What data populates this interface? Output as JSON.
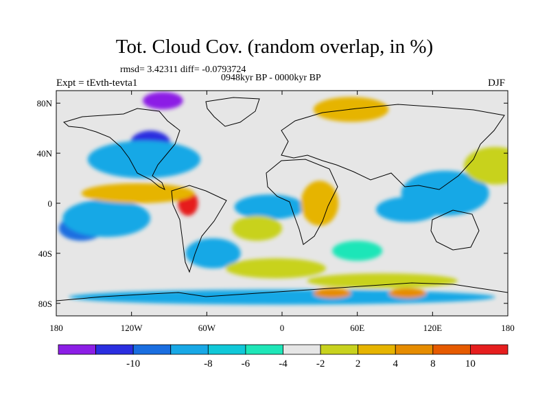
{
  "title": "Tot. Cloud Cov. (random overlap, in %)",
  "stats": "rmsd= 3.42311 diff= -0.0793724",
  "period": "0948kyr BP - 0000kyr BP",
  "experiment": "Expt = tEvth-tevta1",
  "season": "DJF",
  "map": {
    "projection": "cylindrical equidistant",
    "lon_range": [
      -180,
      180
    ],
    "lat_range": [
      -90,
      90
    ],
    "background_color": "#e6e6e6",
    "lat_ticks": [
      {
        "lat": 80,
        "label": "80N"
      },
      {
        "lat": 40,
        "label": "40N"
      },
      {
        "lat": 0,
        "label": "0"
      },
      {
        "lat": -40,
        "label": "40S"
      },
      {
        "lat": -80,
        "label": "80S"
      }
    ],
    "lon_ticks": [
      {
        "lon": -180,
        "label": "180"
      },
      {
        "lon": -120,
        "label": "120W"
      },
      {
        "lon": -60,
        "label": "60W"
      },
      {
        "lon": 0,
        "label": "0"
      },
      {
        "lon": 60,
        "label": "60E"
      },
      {
        "lon": 120,
        "label": "120E"
      },
      {
        "lon": 180,
        "label": "180"
      }
    ]
  },
  "colorbar": {
    "colors": [
      "#8c1ee6",
      "#2a2ee0",
      "#1a6ee0",
      "#18a8e6",
      "#10c8d8",
      "#1ee6b8",
      "#e6e6e6",
      "#c8d21e",
      "#e6b400",
      "#e68c00",
      "#e65a00",
      "#e61e1e"
    ],
    "labels": [
      "-10",
      "-8",
      "-6",
      "-4",
      "-2",
      "2",
      "4",
      "8",
      "10"
    ]
  },
  "anomaly_regions": [
    {
      "lon": -8,
      "lat": -3,
      "rx": 14,
      "ry": 5,
      "level": -10
    },
    {
      "lon": -10,
      "lat": -3,
      "rx": 28,
      "ry": 10,
      "level": -4
    },
    {
      "lon": 145,
      "lat": 5,
      "rx": 16,
      "ry": 8,
      "level": -8
    },
    {
      "lon": 130,
      "lat": 8,
      "rx": 35,
      "ry": 18,
      "level": -4
    },
    {
      "lon": -105,
      "lat": 48,
      "rx": 16,
      "ry": 10,
      "level": -8
    },
    {
      "lon": -95,
      "lat": 82,
      "rx": 16,
      "ry": 7,
      "level": -10
    },
    {
      "lon": -160,
      "lat": -20,
      "rx": 18,
      "ry": 10,
      "level": -6
    },
    {
      "lon": -140,
      "lat": -12,
      "rx": 35,
      "ry": 15,
      "level": -4
    },
    {
      "lon": -110,
      "lat": 35,
      "rx": 45,
      "ry": 15,
      "level": -4
    },
    {
      "lon": 100,
      "lat": -5,
      "rx": 25,
      "ry": 10,
      "level": -4
    },
    {
      "lon": -55,
      "lat": -40,
      "rx": 22,
      "ry": 12,
      "level": -4
    },
    {
      "lon": 60,
      "lat": -38,
      "rx": 20,
      "ry": 8,
      "level": -2
    },
    {
      "lon": -75,
      "lat": 0,
      "rx": 8,
      "ry": 10,
      "level": 10
    },
    {
      "lon": -115,
      "lat": 8,
      "rx": 45,
      "ry": 8,
      "level": 4
    },
    {
      "lon": 30,
      "lat": 0,
      "rx": 15,
      "ry": 18,
      "level": 4
    },
    {
      "lon": 170,
      "lat": 30,
      "rx": 25,
      "ry": 15,
      "level": 2
    },
    {
      "lon": -5,
      "lat": -52,
      "rx": 40,
      "ry": 8,
      "level": 2
    },
    {
      "lon": 80,
      "lat": -62,
      "rx": 60,
      "ry": 6,
      "level": 2
    },
    {
      "lon": -20,
      "lat": -20,
      "rx": 20,
      "ry": 10,
      "level": 2
    },
    {
      "lon": 55,
      "lat": 75,
      "rx": 30,
      "ry": 10,
      "level": 4
    },
    {
      "lon": 0,
      "lat": -75,
      "rx": 170,
      "ry": 6,
      "level": -4
    },
    {
      "lon": 40,
      "lat": -72,
      "rx": 15,
      "ry": 4,
      "level": 8
    },
    {
      "lon": 100,
      "lat": -72,
      "rx": 15,
      "ry": 4,
      "level": 8
    }
  ]
}
